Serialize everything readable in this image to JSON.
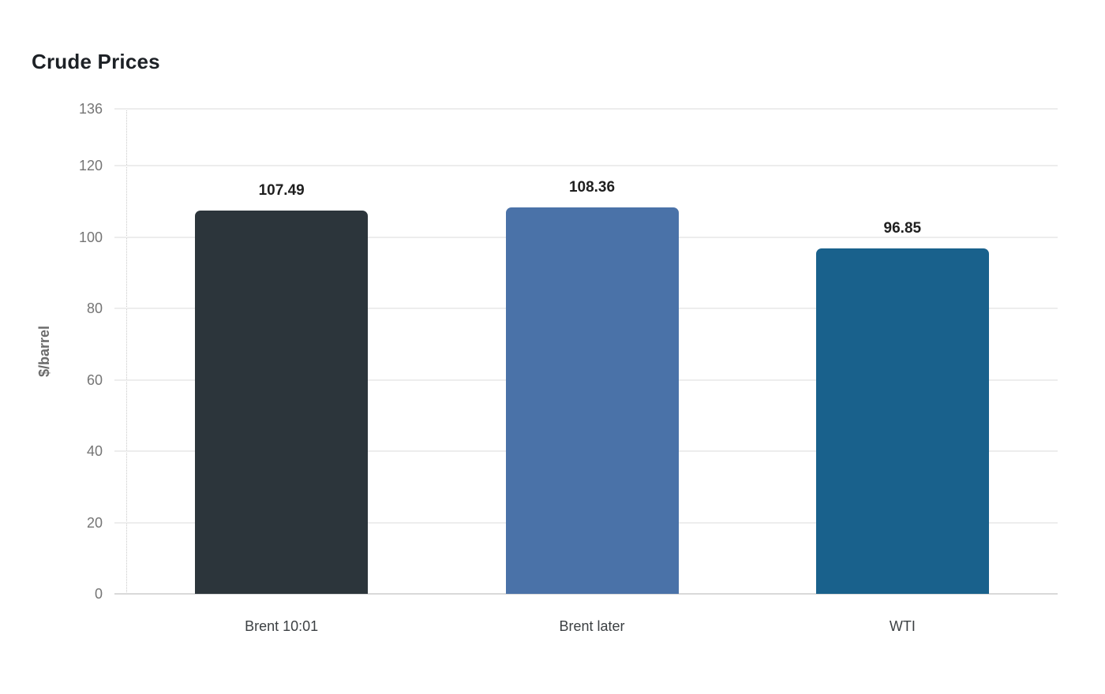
{
  "chart_data": {
    "type": "bar",
    "title": "Crude Prices",
    "xlabel": "",
    "ylabel": "$/barrel",
    "categories": [
      "Brent 10:01",
      "Brent later",
      "WTI"
    ],
    "values": [
      107.49,
      108.36,
      96.85
    ],
    "value_labels": [
      "107.49",
      "108.36",
      "96.85"
    ],
    "bar_colors": [
      "#2c353b",
      "#4a72a8",
      "#19618c"
    ],
    "ylim": [
      0,
      136
    ],
    "yticks": [
      0,
      20,
      40,
      60,
      80,
      100,
      120,
      136
    ],
    "grid": "horizontal",
    "legend": "none",
    "style": {
      "background": "#ffffff",
      "grid_color": "#ededed",
      "axis_line_color": "#d9d9d9",
      "dotted_axis_color": "#c9c9c9",
      "tick_label_color": "#757575",
      "category_label_color": "#3c4043",
      "value_label_color": "#1f1f1f",
      "title_color": "#1d2126",
      "ylabel_color": "#6b6b6b"
    }
  }
}
